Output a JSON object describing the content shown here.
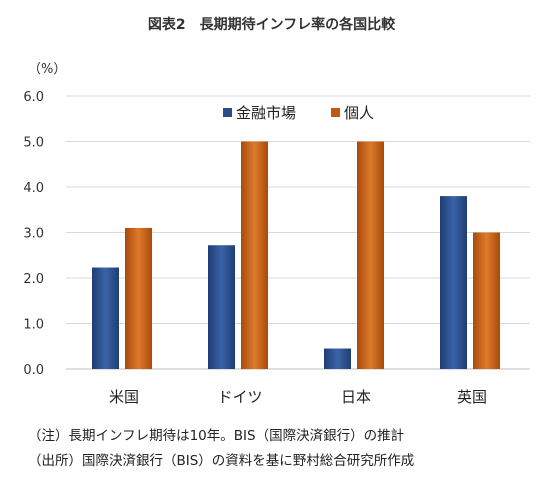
{
  "chart_data": {
    "type": "bar",
    "title": "図表2　長期期待インフレ率の各国比較",
    "unit_label": "（%）",
    "categories": [
      "米国",
      "ドイツ",
      "日本",
      "英国"
    ],
    "series": [
      {
        "name": "金融市場",
        "color": "#2a4d8a",
        "values": [
          2.23,
          2.72,
          0.45,
          3.8
        ]
      },
      {
        "name": "個人",
        "color": "#c05a12",
        "values": [
          3.1,
          5.0,
          5.0,
          3.0
        ]
      }
    ],
    "ylim": [
      0,
      6
    ],
    "yticks": [
      "0.0",
      "1.0",
      "2.0",
      "3.0",
      "4.0",
      "5.0",
      "6.0"
    ],
    "grid": true,
    "legend_position": "top"
  },
  "notes": [
    "（注）長期インフレ期待は10年。BIS（国際決済銀行）の推計",
    "（出所）国際決済銀行（BIS）の資料を基に野村総合研究所作成"
  ]
}
